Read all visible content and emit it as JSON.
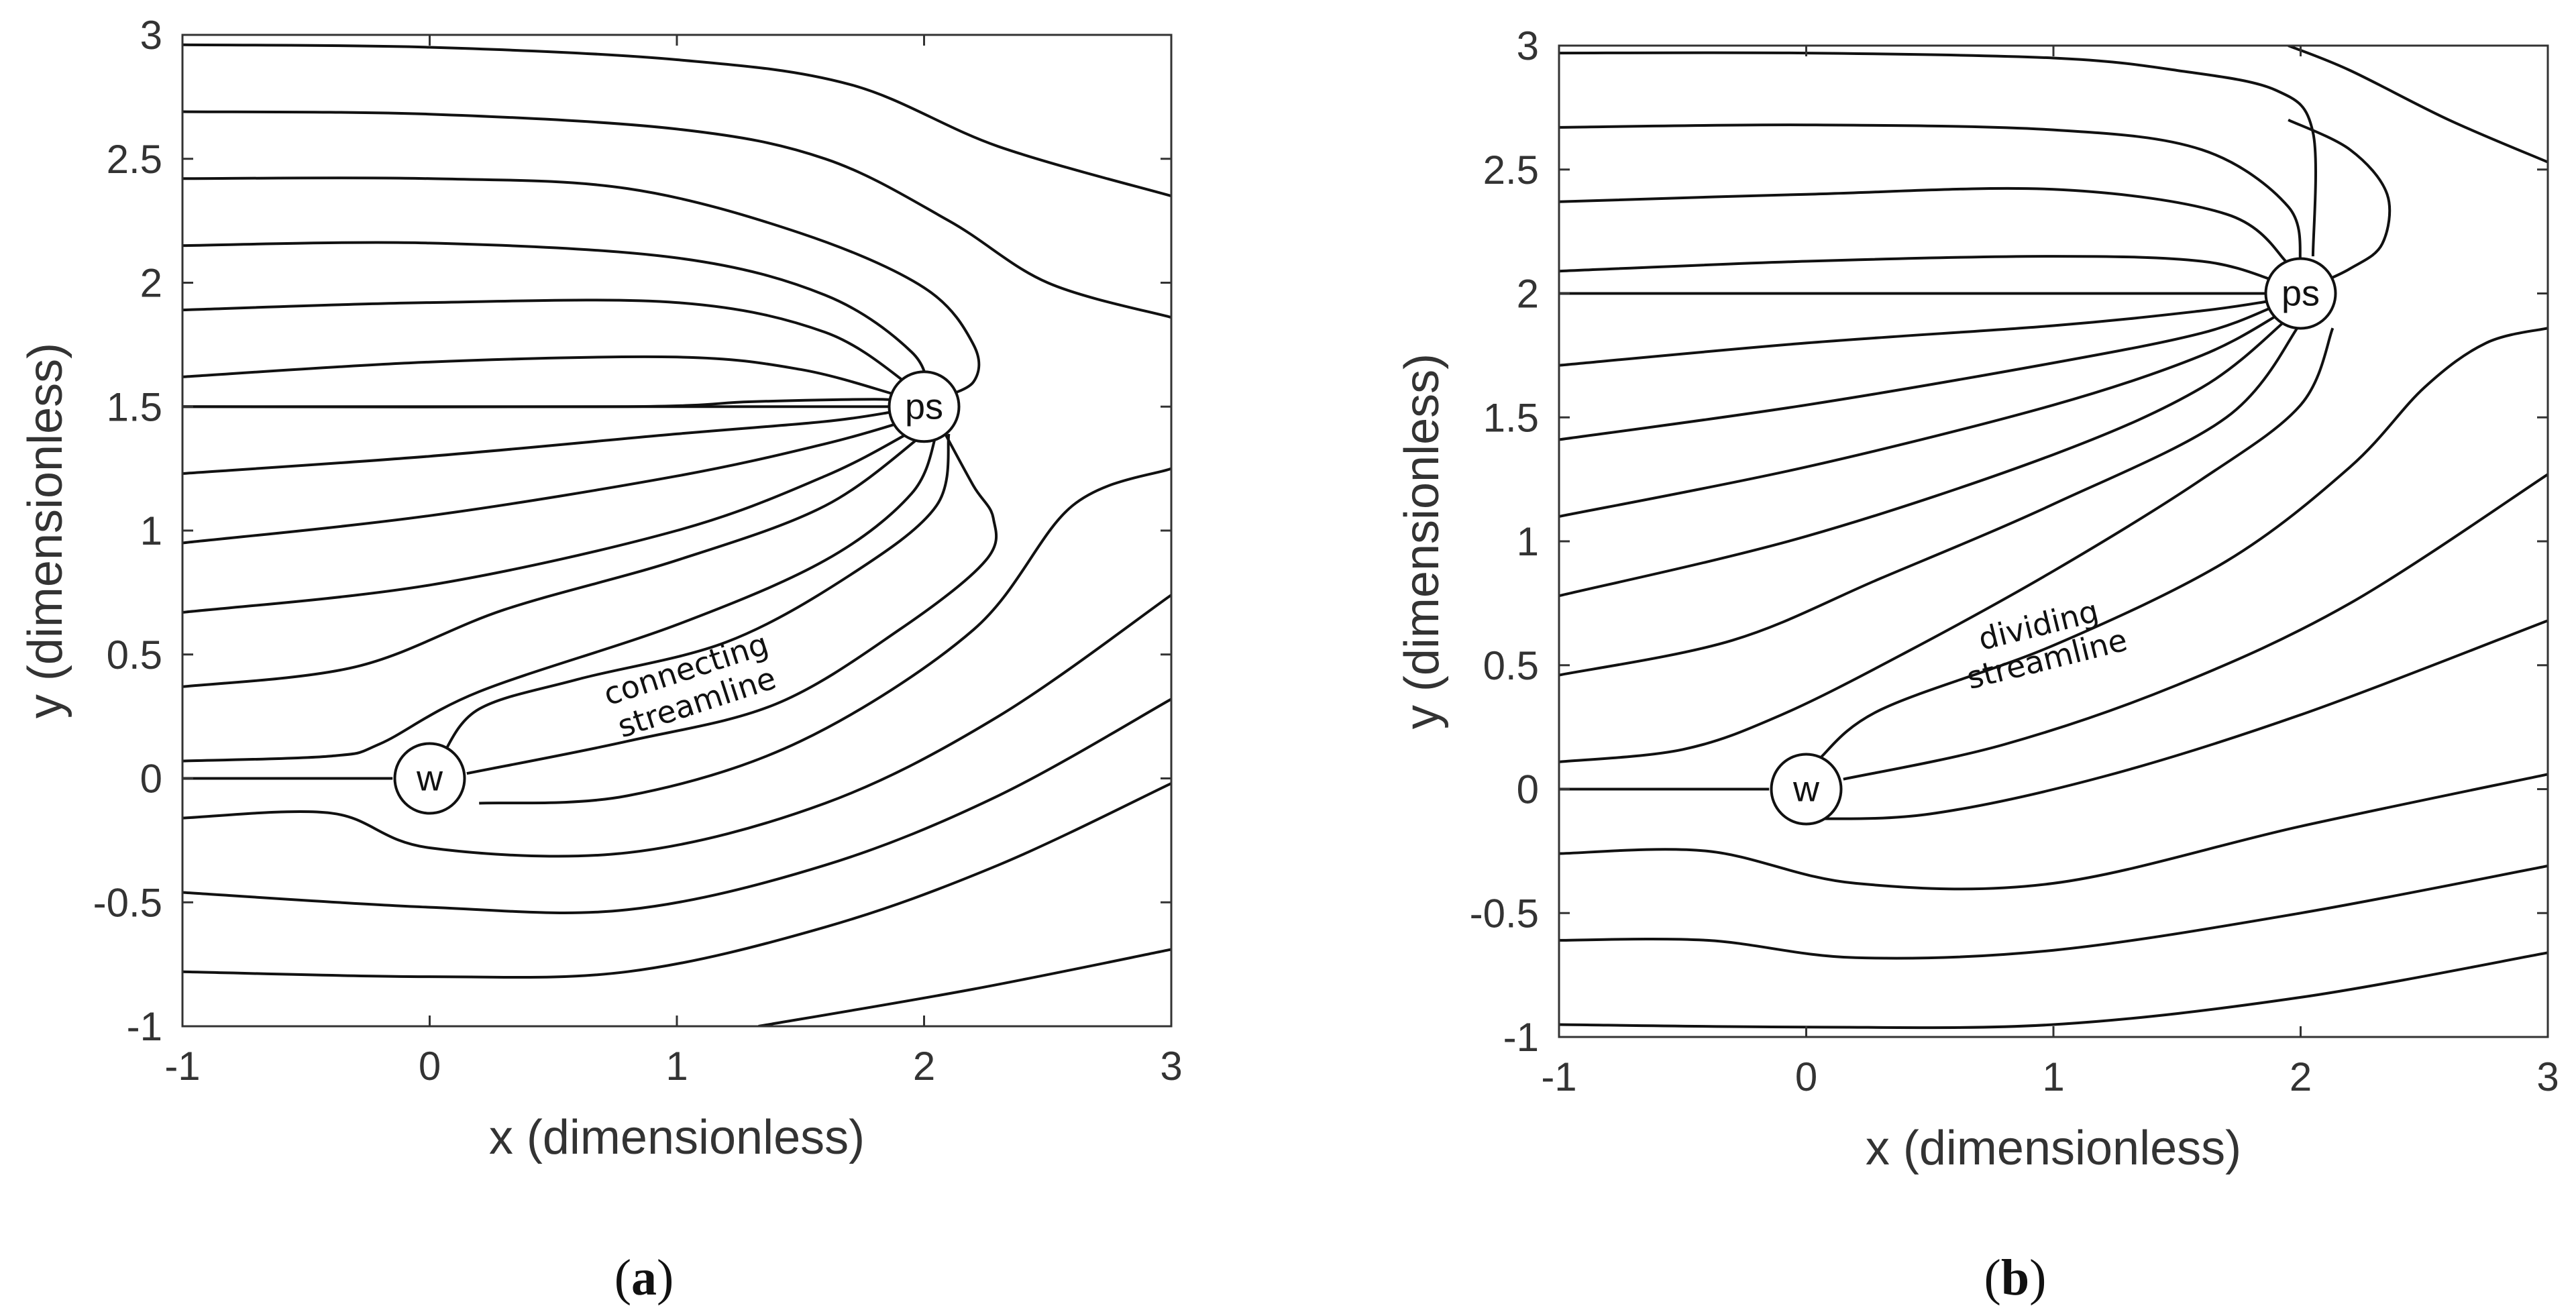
{
  "chart_data": [
    {
      "panel": "a",
      "type": "line",
      "caption_prefix": "(",
      "caption_letter": "a",
      "caption_suffix": ")",
      "xlabel": "x (dimensionless)",
      "ylabel": "y (dimensionless)",
      "xlim": [
        -1,
        3
      ],
      "ylim": [
        -1,
        3
      ],
      "xticks": [
        -1,
        0,
        1,
        2,
        3
      ],
      "yticks": [
        -1,
        -0.5,
        0,
        0.5,
        1,
        1.5,
        2,
        2.5,
        3
      ],
      "xtick_labels": [
        "-1",
        "0",
        "1",
        "2",
        "3"
      ],
      "ytick_labels": [
        "-1",
        "-0.5",
        "0",
        "0.5",
        "1",
        "1.5",
        "2",
        "2.5",
        "3"
      ],
      "grid": false,
      "markers": [
        {
          "label": "w",
          "x": 0,
          "y": 0
        },
        {
          "label": "ps",
          "x": 2,
          "y": 1.5
        }
      ],
      "annotation": {
        "lines": [
          "connecting",
          "streamline"
        ],
        "x": 1.05,
        "y": 0.4,
        "angle_deg": -18
      },
      "series": [
        {
          "points": [
            [
              -1,
              2.96
            ],
            [
              0,
              2.95
            ],
            [
              1,
              2.9
            ],
            [
              1.7,
              2.8
            ],
            [
              2.3,
              2.55
            ],
            [
              3,
              2.35
            ]
          ]
        },
        {
          "points": [
            [
              -1,
              2.69
            ],
            [
              0,
              2.68
            ],
            [
              1,
              2.62
            ],
            [
              1.6,
              2.5
            ],
            [
              2.1,
              2.25
            ],
            [
              2.5,
              2.0
            ],
            [
              3,
              1.86
            ]
          ]
        },
        {
          "points": [
            [
              -1,
              2.42
            ],
            [
              0,
              2.42
            ],
            [
              0.8,
              2.38
            ],
            [
              1.5,
              2.2
            ],
            [
              2.0,
              1.98
            ],
            [
              2.2,
              1.75
            ],
            [
              2.2,
              1.6
            ],
            [
              2.05,
              1.53
            ]
          ]
        },
        {
          "points": [
            [
              -1,
              2.15
            ],
            [
              0,
              2.16
            ],
            [
              1,
              2.1
            ],
            [
              1.6,
              1.95
            ],
            [
              1.95,
              1.72
            ],
            [
              2.02,
              1.55
            ]
          ]
        },
        {
          "points": [
            [
              -1,
              1.89
            ],
            [
              0,
              1.92
            ],
            [
              1,
              1.92
            ],
            [
              1.6,
              1.8
            ],
            [
              1.95,
              1.58
            ]
          ]
        },
        {
          "points": [
            [
              -1,
              1.62
            ],
            [
              0,
              1.68
            ],
            [
              1,
              1.7
            ],
            [
              1.5,
              1.65
            ],
            [
              1.88,
              1.55
            ]
          ]
        },
        {
          "points": [
            [
              -1,
              1.5
            ],
            [
              0,
              1.5
            ],
            [
              1,
              1.5
            ],
            [
              1.88,
              1.5
            ]
          ]
        },
        {
          "points": [
            [
              -1,
              1.5
            ],
            [
              0.8,
              1.5
            ],
            [
              1.3,
              1.52
            ],
            [
              1.8,
              1.53
            ],
            [
              1.9,
              1.52
            ]
          ]
        },
        {
          "points": [
            [
              -1,
              1.23
            ],
            [
              0,
              1.3
            ],
            [
              1,
              1.39
            ],
            [
              1.6,
              1.44
            ],
            [
              1.88,
              1.48
            ]
          ]
        },
        {
          "points": [
            [
              -1,
              0.95
            ],
            [
              0,
              1.06
            ],
            [
              1,
              1.22
            ],
            [
              1.6,
              1.35
            ],
            [
              1.92,
              1.44
            ]
          ]
        },
        {
          "points": [
            [
              -1,
              0.67
            ],
            [
              0,
              0.78
            ],
            [
              1,
              1.0
            ],
            [
              1.6,
              1.22
            ],
            [
              1.95,
              1.4
            ]
          ]
        },
        {
          "points": [
            [
              -1,
              0.37
            ],
            [
              -0.3,
              0.45
            ],
            [
              0.3,
              0.68
            ],
            [
              1,
              0.88
            ],
            [
              1.6,
              1.1
            ],
            [
              2.0,
              1.39
            ]
          ]
        },
        {
          "points": [
            [
              -1,
              0.07
            ],
            [
              -0.4,
              0.09
            ],
            [
              -0.2,
              0.14
            ],
            [
              0.2,
              0.35
            ],
            [
              1,
              0.62
            ],
            [
              1.6,
              0.88
            ],
            [
              1.95,
              1.15
            ],
            [
              2.05,
              1.39
            ]
          ]
        },
        {
          "points": [
            [
              0.05,
              0.09
            ],
            [
              0.2,
              0.28
            ],
            [
              0.6,
              0.4
            ],
            [
              1.2,
              0.55
            ],
            [
              1.7,
              0.82
            ],
            [
              2.05,
              1.1
            ],
            [
              2.1,
              1.39
            ]
          ]
        },
        {
          "points": [
            [
              -1,
              0
            ],
            [
              -0.15,
              0
            ]
          ]
        },
        {
          "points": [
            [
              0.15,
              0.02
            ],
            [
              0.8,
              0.15
            ],
            [
              1.4,
              0.3
            ],
            [
              1.9,
              0.6
            ],
            [
              2.25,
              0.88
            ],
            [
              2.28,
              1.05
            ],
            [
              2.2,
              1.18
            ],
            [
              2.08,
              1.4
            ]
          ]
        },
        {
          "points": [
            [
              0.2,
              -0.1
            ],
            [
              0.8,
              -0.07
            ],
            [
              1.5,
              0.15
            ],
            [
              2.2,
              0.6
            ],
            [
              2.6,
              1.1
            ],
            [
              3,
              1.25
            ]
          ]
        },
        {
          "points": [
            [
              -1,
              -0.16
            ],
            [
              -0.4,
              -0.14
            ],
            [
              0,
              -0.28
            ],
            [
              0.8,
              -0.3
            ],
            [
              1.6,
              -0.1
            ],
            [
              2.3,
              0.25
            ],
            [
              3,
              0.74
            ]
          ]
        },
        {
          "points": [
            [
              -1,
              -0.46
            ],
            [
              0,
              -0.52
            ],
            [
              0.8,
              -0.53
            ],
            [
              1.6,
              -0.35
            ],
            [
              2.3,
              -0.07
            ],
            [
              3,
              0.32
            ]
          ]
        },
        {
          "points": [
            [
              -1,
              -0.78
            ],
            [
              0,
              -0.8
            ],
            [
              0.8,
              -0.78
            ],
            [
              1.6,
              -0.6
            ],
            [
              2.3,
              -0.35
            ],
            [
              3,
              -0.02
            ]
          ]
        },
        {
          "points": [
            [
              1.33,
              -1
            ],
            [
              2.2,
              -0.85
            ],
            [
              3,
              -0.69
            ]
          ]
        }
      ]
    },
    {
      "panel": "b",
      "type": "line",
      "caption_prefix": "(",
      "caption_letter": "b",
      "caption_suffix": ")",
      "xlabel": "x (dimensionless)",
      "ylabel": "y (dimensionless)",
      "xlim": [
        -1,
        3
      ],
      "ylim": [
        -1,
        3
      ],
      "xticks": [
        -1,
        0,
        1,
        2,
        3
      ],
      "yticks": [
        -1,
        -0.5,
        0,
        0.5,
        1,
        1.5,
        2,
        2.5,
        3
      ],
      "xtick_labels": [
        "-1",
        "0",
        "1",
        "2",
        "3"
      ],
      "ytick_labels": [
        "-1",
        "-0.5",
        "0",
        "0.5",
        "1",
        "1.5",
        "2",
        "2.5",
        "3"
      ],
      "grid": false,
      "markers": [
        {
          "label": "w",
          "x": 0,
          "y": 0
        },
        {
          "label": "ps",
          "x": 2,
          "y": 2
        }
      ],
      "annotation": {
        "lines": [
          "dividing",
          "streamline"
        ],
        "x": 0.95,
        "y": 0.62,
        "angle_deg": -14
      },
      "series": [
        {
          "points": [
            [
              -1,
              2.97
            ],
            [
              0,
              2.97
            ],
            [
              1,
              2.95
            ],
            [
              1.5,
              2.9
            ],
            [
              1.9,
              2.82
            ],
            [
              2.05,
              2.65
            ],
            [
              2.05,
              2.15
            ]
          ]
        },
        {
          "points": [
            [
              1.95,
              3
            ],
            [
              2.2,
              2.9
            ],
            [
              2.6,
              2.7
            ],
            [
              3,
              2.53
            ]
          ]
        },
        {
          "points": [
            [
              -1,
              2.67
            ],
            [
              0,
              2.68
            ],
            [
              1,
              2.66
            ],
            [
              1.6,
              2.58
            ],
            [
              1.95,
              2.35
            ],
            [
              2.0,
              2.12
            ]
          ]
        },
        {
          "points": [
            [
              -1,
              2.37
            ],
            [
              0,
              2.4
            ],
            [
              1,
              2.42
            ],
            [
              1.7,
              2.32
            ],
            [
              1.95,
              2.12
            ]
          ]
        },
        {
          "points": [
            [
              -1,
              2.09
            ],
            [
              0,
              2.13
            ],
            [
              1,
              2.15
            ],
            [
              1.6,
              2.13
            ],
            [
              1.9,
              2.05
            ]
          ]
        },
        {
          "points": [
            [
              1.95,
              2.7
            ],
            [
              2.2,
              2.58
            ],
            [
              2.35,
              2.4
            ],
            [
              2.33,
              2.2
            ],
            [
              2.2,
              2.1
            ],
            [
              2.05,
              2.03
            ]
          ]
        },
        {
          "points": [
            [
              -1,
              2.0
            ],
            [
              0,
              2.0
            ],
            [
              1,
              2.0
            ],
            [
              1.88,
              2.0
            ]
          ]
        },
        {
          "points": [
            [
              -1,
              1.71
            ],
            [
              0,
              1.8
            ],
            [
              1,
              1.87
            ],
            [
              1.6,
              1.93
            ],
            [
              1.88,
              1.97
            ]
          ]
        },
        {
          "points": [
            [
              -1,
              1.41
            ],
            [
              0,
              1.55
            ],
            [
              1,
              1.72
            ],
            [
              1.6,
              1.84
            ],
            [
              1.9,
              1.95
            ]
          ]
        },
        {
          "points": [
            [
              -1,
              1.1
            ],
            [
              0,
              1.3
            ],
            [
              1,
              1.55
            ],
            [
              1.6,
              1.75
            ],
            [
              1.92,
              1.92
            ]
          ]
        },
        {
          "points": [
            [
              -1,
              0.78
            ],
            [
              0,
              1.02
            ],
            [
              1,
              1.35
            ],
            [
              1.6,
              1.62
            ],
            [
              1.95,
              1.9
            ]
          ]
        },
        {
          "points": [
            [
              -1,
              0.46
            ],
            [
              -0.3,
              0.6
            ],
            [
              0.3,
              0.85
            ],
            [
              1,
              1.15
            ],
            [
              1.7,
              1.5
            ],
            [
              2.0,
              1.88
            ]
          ]
        },
        {
          "points": [
            [
              -1,
              0.11
            ],
            [
              -0.5,
              0.16
            ],
            [
              -0.1,
              0.3
            ],
            [
              0.4,
              0.55
            ],
            [
              1,
              0.88
            ],
            [
              1.6,
              1.25
            ],
            [
              2.0,
              1.55
            ],
            [
              2.13,
              1.86
            ]
          ]
        },
        {
          "points": [
            [
              0.05,
              0.12
            ],
            [
              0.3,
              0.32
            ],
            [
              1,
              0.58
            ],
            [
              1.7,
              0.92
            ],
            [
              2.2,
              1.3
            ],
            [
              2.5,
              1.62
            ],
            [
              2.75,
              1.8
            ],
            [
              3,
              1.86
            ]
          ]
        },
        {
          "points": [
            [
              -1,
              0
            ],
            [
              -0.15,
              0
            ]
          ]
        },
        {
          "points": [
            [
              0.15,
              0.04
            ],
            [
              0.8,
              0.18
            ],
            [
              1.5,
              0.42
            ],
            [
              2.2,
              0.75
            ],
            [
              3,
              1.27
            ]
          ]
        },
        {
          "points": [
            [
              0.0,
              -0.12
            ],
            [
              0.5,
              -0.1
            ],
            [
              1.2,
              0.05
            ],
            [
              2.0,
              0.3
            ],
            [
              3,
              0.68
            ]
          ]
        },
        {
          "points": [
            [
              -1,
              -0.26
            ],
            [
              -0.4,
              -0.25
            ],
            [
              0.2,
              -0.38
            ],
            [
              1,
              -0.38
            ],
            [
              2,
              -0.15
            ],
            [
              3,
              0.06
            ]
          ]
        },
        {
          "points": [
            [
              -1,
              -0.61
            ],
            [
              -0.4,
              -0.61
            ],
            [
              0.2,
              -0.68
            ],
            [
              1,
              -0.65
            ],
            [
              2,
              -0.5
            ],
            [
              3,
              -0.31
            ]
          ]
        },
        {
          "points": [
            [
              -1,
              -0.95
            ],
            [
              0,
              -0.96
            ],
            [
              1,
              -0.95
            ],
            [
              2,
              -0.84
            ],
            [
              3,
              -0.66
            ]
          ]
        }
      ]
    }
  ]
}
